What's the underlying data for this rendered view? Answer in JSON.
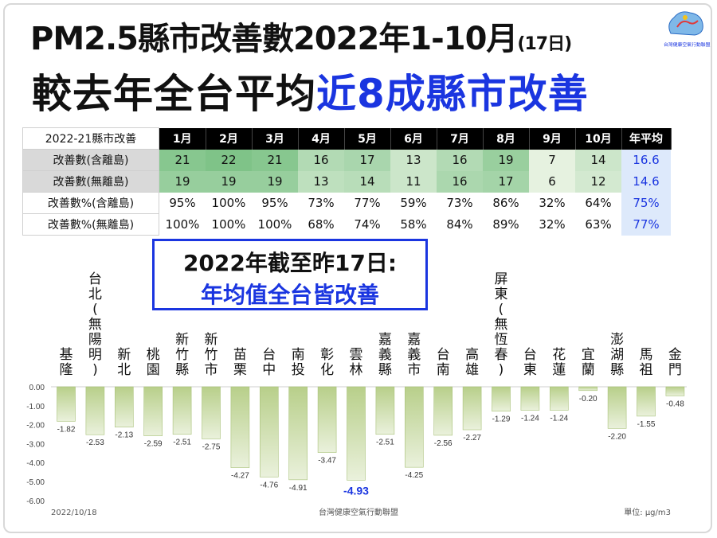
{
  "header": {
    "title_main": "PM2.5縣市改善數2022年1-10月",
    "title_note": "(17日)",
    "subtitle_plain": "較去年全台平均",
    "subtitle_highlight": "近8成縣市改善",
    "logo_text": "台灣健康空氣行動聯盟"
  },
  "table": {
    "corner": "2022-21縣市改善",
    "months": [
      "1月",
      "2月",
      "3月",
      "4月",
      "5月",
      "6月",
      "7月",
      "8月",
      "9月",
      "10月"
    ],
    "avg_header": "年平均",
    "rows": [
      {
        "label": "改善數(含離島)",
        "values": [
          "21",
          "22",
          "21",
          "16",
          "17",
          "13",
          "16",
          "19",
          "7",
          "14"
        ],
        "avg": "16.6",
        "shade": [
          0.69,
          0.75,
          0.69,
          0.38,
          0.44,
          0.19,
          0.38,
          0.56,
          0.0,
          0.19
        ]
      },
      {
        "label": "改善數(無離島)",
        "values": [
          "19",
          "19",
          "19",
          "13",
          "14",
          "11",
          "16",
          "17",
          "6",
          "12"
        ],
        "avg": "14.6",
        "shade": [
          0.57,
          0.57,
          0.57,
          0.29,
          0.33,
          0.19,
          0.43,
          0.48,
          0.0,
          0.14
        ]
      },
      {
        "label": "改善數%(含離島)",
        "values": [
          "95%",
          "100%",
          "95%",
          "73%",
          "77%",
          "59%",
          "73%",
          "86%",
          "32%",
          "64%"
        ],
        "avg": "75%"
      },
      {
        "label": "改善數%(無離島)",
        "values": [
          "100%",
          "100%",
          "100%",
          "68%",
          "74%",
          "58%",
          "84%",
          "89%",
          "32%",
          "63%"
        ],
        "avg": "77%"
      }
    ],
    "colors": {
      "green_light": "#e6f2e0",
      "green_dark": "#5cb36b",
      "avg_text": "#1a35e0"
    }
  },
  "callout": {
    "line1": "2022年截至昨17日:",
    "line2": "年均值全台皆改善"
  },
  "chart_data": {
    "type": "bar",
    "categories": [
      "基隆",
      "台北(無陽明)",
      "新北",
      "桃園",
      "新竹縣",
      "新竹市",
      "苗栗",
      "台中",
      "南投",
      "彰化",
      "雲林",
      "嘉義縣",
      "嘉義市",
      "台南",
      "高雄",
      "屏東(無恆春)",
      "台東",
      "花蓮",
      "宜蘭",
      "澎湖縣",
      "馬祖",
      "金門"
    ],
    "values": [
      -1.82,
      -2.53,
      -2.13,
      -2.59,
      -2.51,
      -2.75,
      -4.27,
      -4.76,
      -4.91,
      -3.47,
      -4.93,
      -2.51,
      -4.25,
      -2.56,
      -2.27,
      -1.29,
      -1.24,
      -1.24,
      -0.2,
      -2.2,
      -1.55,
      -0.48
    ],
    "labels": [
      "-1.82",
      "-2.53",
      "-2.13",
      "-2.59",
      "-2.51",
      "-2.75",
      "-4.27",
      "-4.76",
      "-4.91",
      "-3.47",
      "-4.93",
      "-2.51",
      "-4.25",
      "-2.56",
      "-2.27",
      "-1.29",
      "-1.24",
      "-1.24",
      "-0.20",
      "-2.20",
      "-1.55",
      "-0.48"
    ],
    "highlight_index": 10,
    "ylim": [
      -6.0,
      0.0
    ],
    "yticks": [
      "0.00",
      "-1.00",
      "-2.00",
      "-3.00",
      "-4.00",
      "-5.00",
      "-6.00"
    ],
    "grid": false,
    "date_note": "2022/10/18",
    "source": "台灣健康空氣行動聯盟",
    "unit": "單位: μg/m3",
    "colors": {
      "bar_top": "#b8cf8a",
      "bar_bottom": "#eaf1dc",
      "bar_edge": "#a9c27a",
      "highlight_text": "#1a35e0"
    }
  }
}
